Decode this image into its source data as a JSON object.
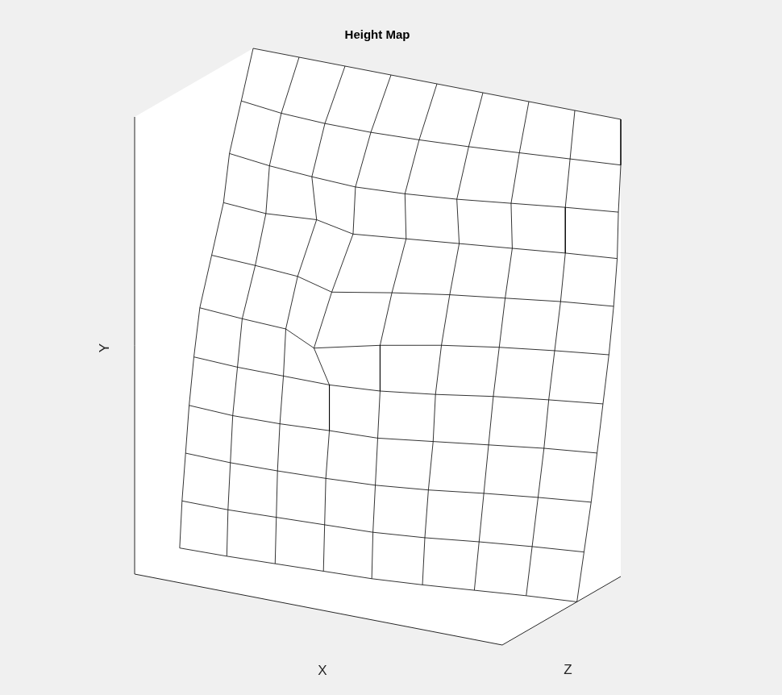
{
  "chart_data": {
    "type": "mesh",
    "title": "Height Map",
    "x_label": "X",
    "y_label": "Y",
    "z_label": "Z",
    "x": [
      0,
      1,
      2,
      3,
      4,
      5,
      6,
      7,
      8
    ],
    "y": [
      10,
      9,
      8,
      7,
      6,
      5,
      4,
      3,
      2,
      1,
      0
    ],
    "z": [
      [
        10,
        10,
        10,
        10,
        10,
        10,
        10,
        10,
        10
      ],
      [
        9,
        8.5,
        8.3,
        8.3,
        8.5,
        8.8,
        9.2,
        9.6,
        10
      ],
      [
        8,
        7.5,
        7.2,
        7,
        7.3,
        7.8,
        8.5,
        9.2,
        9.8
      ],
      [
        7.5,
        7.2,
        7.6,
        6.8,
        7.4,
        8,
        8.6,
        9.2,
        9.7
      ],
      [
        6.5,
        6.3,
        6,
        5,
        6.2,
        7.2,
        8,
        8.8,
        9.4
      ],
      [
        5.5,
        5.2,
        5,
        3.5,
        5.2,
        6.5,
        7.5,
        8.3,
        9
      ],
      [
        5,
        4.8,
        4.8,
        4.8,
        5.2,
        6,
        7,
        7.8,
        8.5
      ],
      [
        4.6,
        4.4,
        4.5,
        4.8,
        5,
        5.8,
        6.6,
        7.4,
        8
      ],
      [
        4.3,
        4.2,
        4.3,
        4.5,
        4.8,
        5.4,
        6.2,
        6.9,
        7.5
      ],
      [
        4,
        4,
        4.2,
        4.4,
        4.6,
        5.1,
        5.8,
        6.4,
        6.9
      ],
      [
        3.8,
        3.9,
        4.1,
        4.3,
        4.5,
        4.9,
        5.4,
        5.9,
        6.3
      ]
    ],
    "xlim": [
      0,
      8
    ],
    "ylim": [
      0,
      10
    ],
    "zlim": [
      0,
      10
    ],
    "tick_labels": false,
    "grid": false,
    "color": "#000000"
  }
}
